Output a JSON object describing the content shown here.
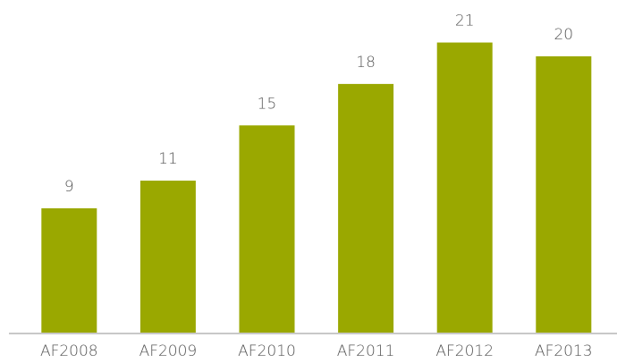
{
  "chart_data": {
    "type": "bar",
    "categories": [
      "AF2008",
      "AF2009",
      "AF2010",
      "AF2011",
      "AF2012",
      "AF2013"
    ],
    "values": [
      9,
      11,
      15,
      18,
      21,
      20
    ],
    "color": "#9aa800"
  }
}
